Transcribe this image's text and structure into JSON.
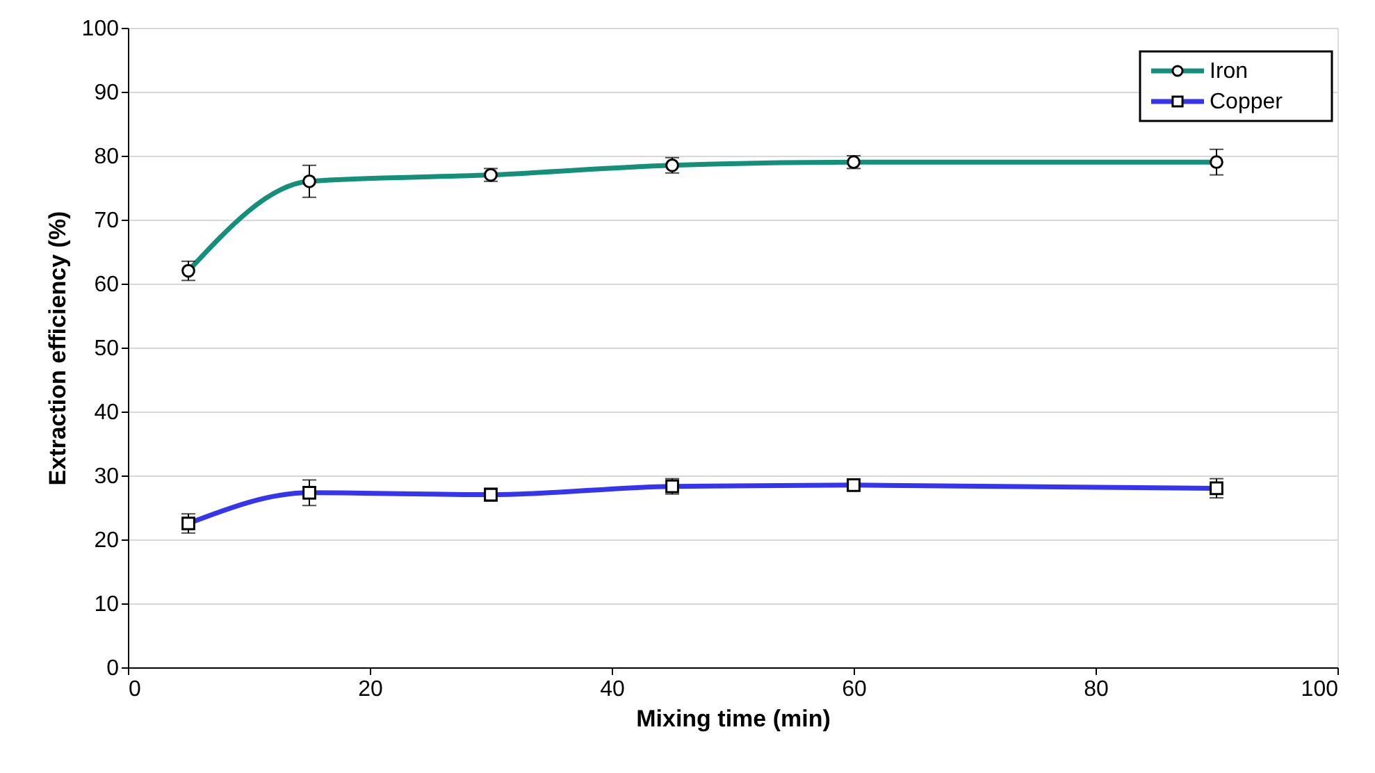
{
  "chart_data": {
    "type": "line",
    "xlabel": "Mixing time (min)",
    "ylabel": "Extraction efficiency (%)",
    "x": [
      5,
      15,
      30,
      45,
      60,
      90
    ],
    "series": [
      {
        "name": "Iron",
        "color": "#14907a",
        "marker": "circle",
        "values": [
          62,
          76,
          77,
          78.5,
          79,
          79
        ],
        "errors": [
          1.5,
          2.5,
          1,
          1.2,
          1,
          2
        ]
      },
      {
        "name": "Copper",
        "color": "#3535ee",
        "marker": "square",
        "values": [
          22.5,
          27.3,
          27,
          28.3,
          28.5,
          28
        ],
        "errors": [
          1.5,
          2,
          1,
          1.2,
          0.8,
          1.5
        ]
      }
    ],
    "xlim": [
      0,
      100
    ],
    "xticks": [
      0,
      20,
      40,
      60,
      80,
      100
    ],
    "ylim": [
      0,
      100
    ],
    "yticks": [
      0,
      10,
      20,
      30,
      40,
      50,
      60,
      70,
      80,
      90,
      100
    ],
    "grid": "y",
    "legend": "top right",
    "line_style": "solid"
  }
}
